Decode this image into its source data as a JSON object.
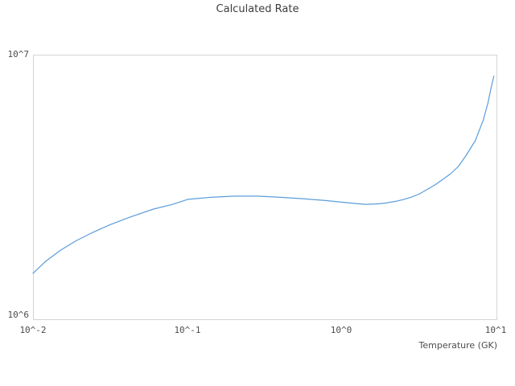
{
  "figure": {
    "title": "Calculated Rate",
    "x_axis_label": "Temperature (GK)"
  },
  "chart_data": {
    "type": "line",
    "title": "Calculated Rate",
    "xlabel": "Temperature (GK)",
    "ylabel": "",
    "x_scale": "log",
    "y_scale": "log",
    "xlim": [
      0.01,
      10
    ],
    "ylim": [
      1000000,
      10000000
    ],
    "x_tick_labels": [
      "10^-2",
      "10^-1",
      "10^0",
      "10^1"
    ],
    "y_tick_labels": [
      "10^6",
      "10^7"
    ],
    "grid": false,
    "legend": false,
    "line_color": "#5b9ddb",
    "series": [
      {
        "name": "Calculated Rate",
        "x": [
          0.01,
          0.012,
          0.015,
          0.019,
          0.024,
          0.031,
          0.042,
          0.06,
          0.08,
          0.1,
          0.14,
          0.2,
          0.28,
          0.4,
          0.58,
          0.78,
          1.0,
          1.2,
          1.4,
          1.7,
          1.9,
          2.2,
          2.5,
          2.8,
          3.15,
          3.5,
          3.95,
          4.45,
          5.0,
          5.6,
          6.3,
          7.2,
          8.1,
          8.7,
          9.1,
          9.5
        ],
        "y": [
          1500000,
          1660000,
          1830000,
          1990000,
          2130000,
          2280000,
          2440000,
          2620000,
          2730000,
          2850000,
          2900000,
          2930000,
          2930000,
          2900000,
          2860000,
          2820000,
          2780000,
          2750000,
          2730000,
          2740000,
          2760000,
          2800000,
          2850000,
          2910000,
          2990000,
          3100000,
          3230000,
          3390000,
          3560000,
          3790000,
          4180000,
          4740000,
          5650000,
          6580000,
          7460000,
          8300000
        ]
      }
    ]
  }
}
